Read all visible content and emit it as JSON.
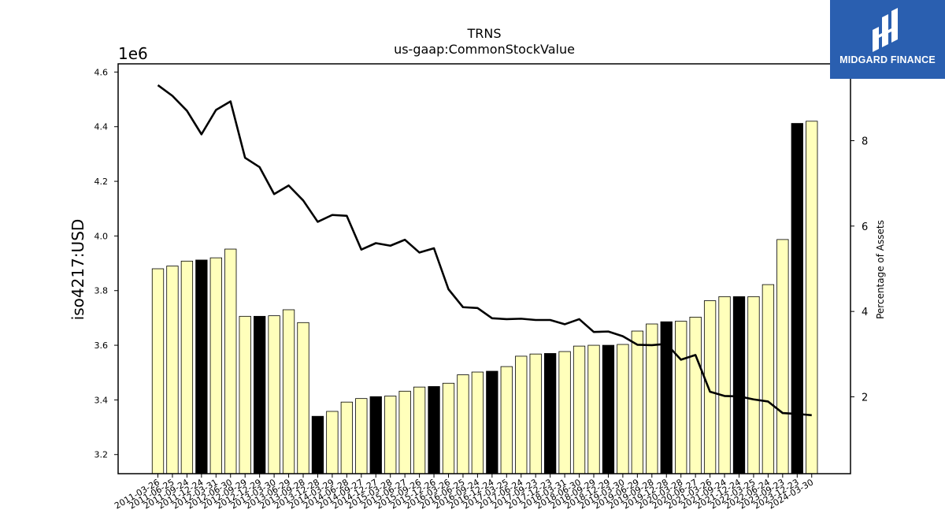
{
  "brand": {
    "name": "MIDGARD FINANCE",
    "logo_icon": "midgard-logo-icon"
  },
  "chart_data": {
    "type": "bar",
    "title": "TRNS",
    "subtitle": "us-gaap:CommonStockValue",
    "ylabel": "iso4217:USD",
    "y_offset_label": "1e6",
    "y2label": "Percentage of Assets",
    "ylim": [
      3.13,
      4.63
    ],
    "y_ticks": [
      3.2,
      3.4,
      3.6,
      3.8,
      4.0,
      4.2,
      4.4,
      4.6
    ],
    "y_tick_labels": [
      "3.2",
      "3.4",
      "3.6",
      "3.8",
      "4.0",
      "4.2",
      "4.4",
      "4.6"
    ],
    "y2lim": [
      0.2,
      9.8
    ],
    "y2_ticks": [
      2,
      4,
      6,
      8
    ],
    "y2_tick_labels": [
      "2",
      "4",
      "6",
      "8"
    ],
    "grid": false,
    "colors": {
      "bar_regular": "#ffffbb",
      "bar_highlight": "#000000",
      "edge": "#000000",
      "line": "#000000"
    },
    "categories": [
      "2011-03-26",
      "2011-06-25",
      "2011-09-24",
      "2011-12-24",
      "2012-03-31",
      "2012-06-30",
      "2012-09-29",
      "2012-12-29",
      "2013-03-30",
      "2013-06-29",
      "2013-09-28",
      "2013-12-28",
      "2014-03-29",
      "2014-06-28",
      "2014-09-27",
      "2014-12-27",
      "2015-03-28",
      "2015-06-27",
      "2015-09-26",
      "2015-12-26",
      "2016-03-26",
      "2016-06-25",
      "2016-09-24",
      "2016-12-24",
      "2017-03-25",
      "2017-06-24",
      "2017-09-23",
      "2017-12-23",
      "2018-03-31",
      "2018-06-30",
      "2018-09-29",
      "2018-12-29",
      "2019-03-30",
      "2019-06-29",
      "2019-09-28",
      "2019-12-28",
      "2020-03-28",
      "2020-06-27",
      "2021-03-26",
      "2021-09-24",
      "2021-12-24",
      "2022-03-25",
      "2022-06-24",
      "2023-09-23",
      "2023-12-23",
      "2024-03-30"
    ],
    "series": [
      {
        "kind": "bar",
        "values": [
          3.88,
          3.89,
          3.908,
          3.912,
          3.92,
          3.952,
          3.706,
          3.706,
          3.708,
          3.73,
          3.683,
          3.34,
          3.358,
          3.392,
          3.405,
          3.412,
          3.414,
          3.432,
          3.447,
          3.449,
          3.461,
          3.492,
          3.502,
          3.505,
          3.522,
          3.56,
          3.568,
          3.57,
          3.577,
          3.597,
          3.6,
          3.6,
          3.603,
          3.652,
          3.678,
          3.686,
          3.688,
          3.703,
          3.763,
          3.778,
          3.778,
          3.778,
          3.822,
          3.987,
          4.412,
          4.42
        ],
        "highlight": [
          false,
          false,
          false,
          true,
          false,
          false,
          false,
          true,
          false,
          false,
          false,
          true,
          false,
          false,
          false,
          true,
          false,
          false,
          false,
          true,
          false,
          false,
          false,
          true,
          false,
          false,
          false,
          true,
          false,
          false,
          false,
          true,
          false,
          false,
          false,
          true,
          false,
          false,
          false,
          false,
          true,
          false,
          false,
          false,
          true,
          false
        ]
      },
      {
        "kind": "line",
        "axis": "right",
        "values": [
          9.3,
          9.05,
          8.7,
          8.15,
          8.72,
          8.92,
          7.6,
          7.38,
          6.75,
          6.95,
          6.6,
          6.1,
          6.26,
          6.24,
          5.45,
          5.6,
          5.54,
          5.68,
          5.38,
          5.48,
          4.52,
          4.1,
          4.08,
          3.84,
          3.82,
          3.83,
          3.8,
          3.8,
          3.7,
          3.82,
          3.52,
          3.53,
          3.42,
          3.22,
          3.21,
          3.24,
          2.87,
          2.98,
          2.12,
          2.02,
          2.01,
          1.94,
          1.89,
          1.62,
          1.6,
          1.57
        ]
      }
    ]
  }
}
